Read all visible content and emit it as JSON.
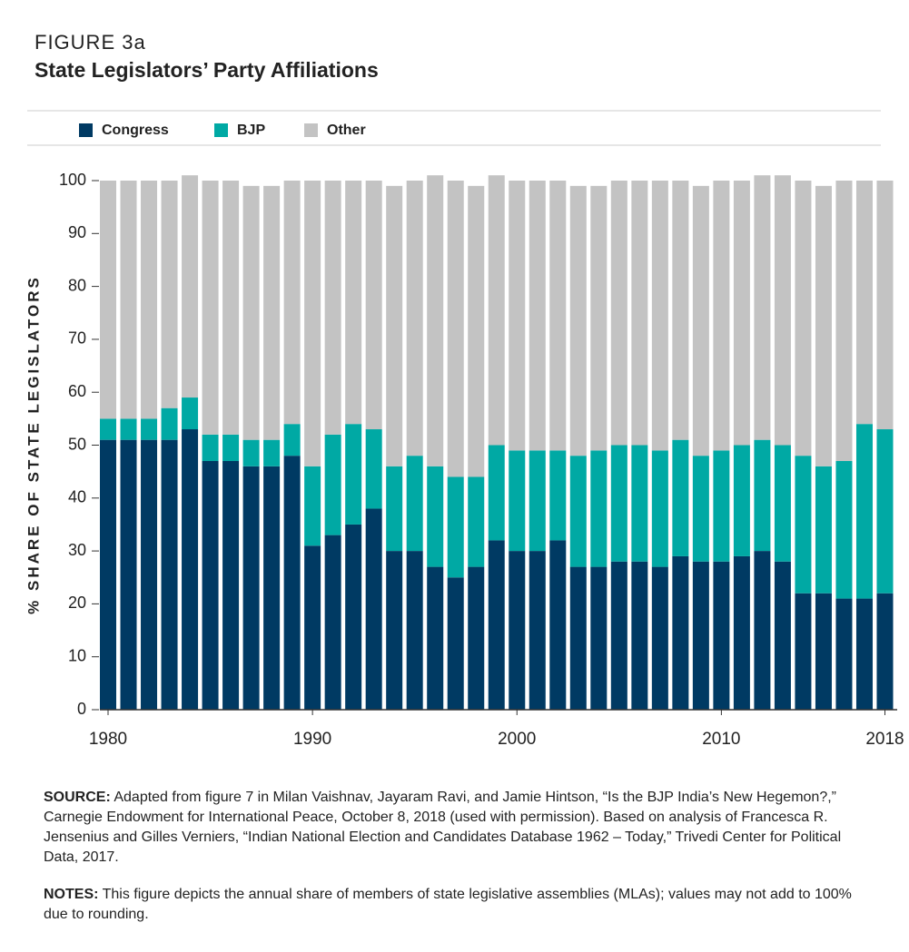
{
  "chart_data": {
    "type": "stacked_bar",
    "figure_label": "FIGURE 3a",
    "title": "State Legislators’ Party Affiliations",
    "y_label": "% SHARE OF STATE LEGISLATORS",
    "x": [
      1980,
      1981,
      1982,
      1983,
      1984,
      1985,
      1986,
      1987,
      1988,
      1989,
      1990,
      1991,
      1992,
      1993,
      1994,
      1995,
      1996,
      1997,
      1998,
      1999,
      2000,
      2001,
      2002,
      2003,
      2004,
      2005,
      2006,
      2007,
      2008,
      2009,
      2010,
      2011,
      2012,
      2013,
      2014,
      2015,
      2016,
      2017,
      2018
    ],
    "series": [
      {
        "name": "Congress",
        "color": "#003a63",
        "values": [
          51,
          51,
          51,
          51,
          53,
          47,
          47,
          46,
          46,
          48,
          31,
          33,
          35,
          38,
          30,
          30,
          27,
          25,
          27,
          32,
          30,
          30,
          32,
          27,
          27,
          28,
          28,
          27,
          29,
          28,
          28,
          29,
          30,
          28,
          22,
          22,
          21,
          21,
          22
        ]
      },
      {
        "name": "BJP",
        "color": "#00a9a4",
        "values": [
          4,
          4,
          4,
          6,
          6,
          5,
          5,
          5,
          5,
          6,
          15,
          19,
          19,
          15,
          16,
          18,
          19,
          19,
          17,
          18,
          19,
          19,
          17,
          21,
          22,
          22,
          22,
          22,
          22,
          20,
          21,
          21,
          21,
          22,
          26,
          24,
          26,
          33,
          31
        ]
      },
      {
        "name": "Other",
        "color": "#c3c3c3",
        "values": [
          45,
          45,
          45,
          43,
          42,
          48,
          48,
          48,
          48,
          46,
          54,
          48,
          46,
          47,
          53,
          52,
          55,
          56,
          55,
          51,
          51,
          51,
          51,
          51,
          50,
          50,
          50,
          51,
          49,
          51,
          51,
          50,
          50,
          51,
          52,
          53,
          53,
          46,
          47
        ]
      }
    ],
    "xlim": [
      1979.6,
      2018.6
    ],
    "xticks": [
      1980,
      1990,
      2000,
      2010,
      2018
    ],
    "ylim": [
      0,
      100
    ],
    "yticks": [
      0,
      10,
      20,
      30,
      40,
      50,
      60,
      70,
      80,
      90,
      100
    ],
    "grid": false,
    "source_label": "SOURCE:",
    "source": "Adapted from figure 7 in Milan Vaishnav, Jayaram Ravi, and Jamie Hintson, “Is the BJP India’s New Hegemon?,” Carnegie Endowment for International Peace, October 8, 2018 (used with permission). Based on analysis of Francesca R. Jensenius and Gilles Verniers, “Indian National Election and Candidates Database 1962 – Today,” Trivedi Center for Political Data, 2017.",
    "notes_label": "NOTES:",
    "notes": "This figure depicts the annual share of members of state legislative assemblies (MLAs); values may not add to 100% due to rounding."
  }
}
